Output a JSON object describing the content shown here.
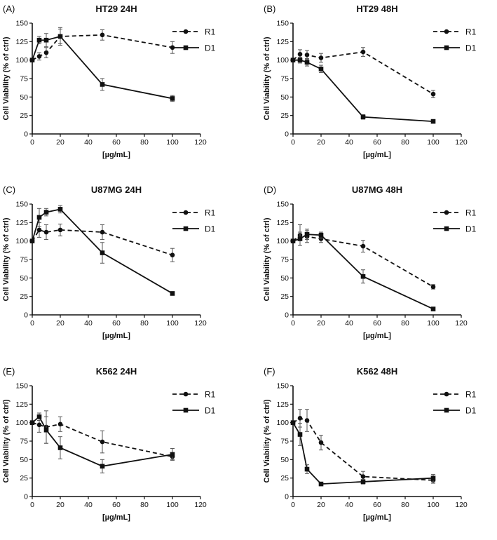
{
  "chart_data": [
    {
      "label": "(A)",
      "title": "HT29 24H",
      "type": "line",
      "xlabel": "[µg/mL]",
      "ylabel": "Cell Viability (% of ctrl)",
      "xlim": [
        0,
        120
      ],
      "ylim": [
        0,
        150
      ],
      "xticks": [
        0,
        20,
        40,
        60,
        80,
        100,
        120
      ],
      "yticks": [
        0,
        25,
        50,
        75,
        100,
        125,
        150
      ],
      "legend_position": "top-right",
      "series": [
        {
          "name": "R1",
          "marker": "circle",
          "line": "dashed",
          "x": [
            0,
            5,
            10,
            20,
            50,
            100
          ],
          "y": [
            100,
            105,
            110,
            132,
            134,
            117
          ],
          "err": [
            2,
            5,
            7,
            12,
            7,
            8
          ]
        },
        {
          "name": "D1",
          "marker": "square",
          "line": "solid",
          "x": [
            0,
            5,
            10,
            20,
            50,
            100
          ],
          "y": [
            100,
            127,
            127,
            132,
            67,
            48
          ],
          "err": [
            2,
            5,
            9,
            10,
            8,
            4
          ]
        }
      ]
    },
    {
      "label": "(B)",
      "title": "HT29 48H",
      "type": "line",
      "xlabel": "[µg/mL]",
      "ylabel": "Cell Viability (% of ctrl)",
      "xlim": [
        0,
        120
      ],
      "ylim": [
        0,
        150
      ],
      "xticks": [
        0,
        20,
        40,
        60,
        80,
        100,
        120
      ],
      "yticks": [
        0,
        25,
        50,
        75,
        100,
        125,
        150
      ],
      "legend_position": "top-right",
      "series": [
        {
          "name": "R1",
          "marker": "circle",
          "line": "dashed",
          "x": [
            0,
            5,
            10,
            20,
            50,
            100
          ],
          "y": [
            100,
            108,
            107,
            103,
            111,
            54
          ],
          "err": [
            2,
            6,
            6,
            6,
            6,
            5
          ]
        },
        {
          "name": "D1",
          "marker": "square",
          "line": "solid",
          "x": [
            0,
            5,
            10,
            20,
            50,
            100
          ],
          "y": [
            100,
            100,
            97,
            88,
            23,
            17
          ],
          "err": [
            2,
            4,
            5,
            5,
            3,
            2
          ]
        }
      ]
    },
    {
      "label": "(C)",
      "title": "U87MG 24H",
      "type": "line",
      "xlabel": "[µg/mL]",
      "ylabel": "Cell Viability (% of ctrl)",
      "xlim": [
        0,
        120
      ],
      "ylim": [
        0,
        150
      ],
      "xticks": [
        0,
        20,
        40,
        60,
        80,
        100,
        120
      ],
      "yticks": [
        0,
        25,
        50,
        75,
        100,
        125,
        150
      ],
      "legend_position": "top-right",
      "series": [
        {
          "name": "R1",
          "marker": "circle",
          "line": "dashed",
          "x": [
            0,
            5,
            10,
            20,
            50,
            100
          ],
          "y": [
            100,
            115,
            112,
            115,
            112,
            81
          ],
          "err": [
            2,
            10,
            10,
            8,
            10,
            9
          ]
        },
        {
          "name": "D1",
          "marker": "square",
          "line": "solid",
          "x": [
            0,
            5,
            10,
            20,
            50,
            100
          ],
          "y": [
            100,
            132,
            139,
            143,
            84,
            29
          ],
          "err": [
            2,
            12,
            5,
            5,
            14,
            2
          ]
        }
      ]
    },
    {
      "label": "(D)",
      "title": "U87MG 48H",
      "type": "line",
      "xlabel": "[µg/mL]",
      "ylabel": "Cell Viability (% of ctrl)",
      "xlim": [
        0,
        120
      ],
      "ylim": [
        0,
        150
      ],
      "xticks": [
        0,
        20,
        40,
        60,
        80,
        100,
        120
      ],
      "yticks": [
        0,
        25,
        50,
        75,
        100,
        125,
        150
      ],
      "legend_position": "top-right",
      "series": [
        {
          "name": "R1",
          "marker": "circle",
          "line": "dashed",
          "x": [
            0,
            5,
            10,
            20,
            50,
            100
          ],
          "y": [
            100,
            108,
            106,
            103,
            93,
            38
          ],
          "err": [
            2,
            14,
            8,
            5,
            8,
            3
          ]
        },
        {
          "name": "D1",
          "marker": "square",
          "line": "solid",
          "x": [
            0,
            5,
            10,
            20,
            50,
            100
          ],
          "y": [
            100,
            103,
            109,
            108,
            52,
            8
          ],
          "err": [
            2,
            9,
            7,
            4,
            9,
            1
          ]
        }
      ]
    },
    {
      "label": "(E)",
      "title": "K562 24H",
      "type": "line",
      "xlabel": "[µg/mL]",
      "ylabel": "Cell Viability (% of ctrl)",
      "xlim": [
        0,
        120
      ],
      "ylim": [
        0,
        150
      ],
      "xticks": [
        0,
        20,
        40,
        60,
        80,
        100,
        120
      ],
      "yticks": [
        0,
        25,
        50,
        75,
        100,
        125,
        150
      ],
      "legend_position": "top-right",
      "series": [
        {
          "name": "R1",
          "marker": "circle",
          "line": "dashed",
          "x": [
            0,
            5,
            10,
            20,
            50,
            100
          ],
          "y": [
            100,
            97,
            94,
            98,
            74,
            54
          ],
          "err": [
            2,
            10,
            22,
            10,
            15,
            4
          ]
        },
        {
          "name": "D1",
          "marker": "square",
          "line": "solid",
          "x": [
            0,
            5,
            10,
            20,
            50,
            100
          ],
          "y": [
            100,
            108,
            90,
            66,
            41,
            57
          ],
          "err": [
            2,
            5,
            18,
            15,
            9,
            8
          ]
        }
      ]
    },
    {
      "label": "(F)",
      "title": "K562 48H",
      "type": "line",
      "xlabel": "[µg/mL]",
      "ylabel": "Cell Viability (% of ctrl)",
      "xlim": [
        0,
        120
      ],
      "ylim": [
        0,
        150
      ],
      "xticks": [
        0,
        20,
        40,
        60,
        80,
        100,
        120
      ],
      "yticks": [
        0,
        25,
        50,
        75,
        100,
        125,
        150
      ],
      "legend_position": "top-right",
      "series": [
        {
          "name": "R1",
          "marker": "circle",
          "line": "dashed",
          "x": [
            0,
            5,
            10,
            20,
            50,
            100
          ],
          "y": [
            100,
            106,
            103,
            73,
            27,
            22
          ],
          "err": [
            2,
            12,
            15,
            10,
            7,
            4
          ]
        },
        {
          "name": "D1",
          "marker": "square",
          "line": "solid",
          "x": [
            0,
            5,
            10,
            20,
            50,
            100
          ],
          "y": [
            100,
            84,
            37,
            17,
            20,
            25
          ],
          "err": [
            2,
            15,
            6,
            2,
            3,
            5
          ]
        }
      ]
    }
  ]
}
